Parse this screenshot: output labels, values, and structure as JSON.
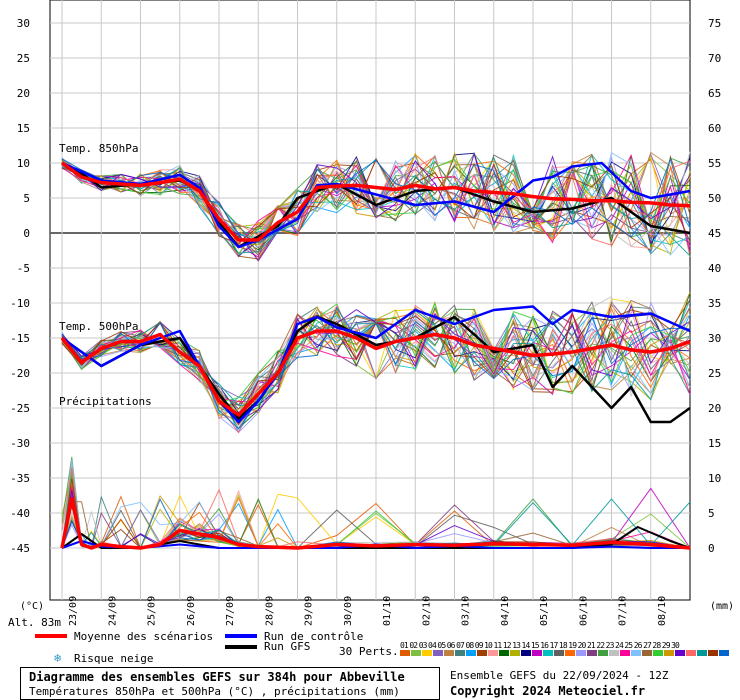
{
  "chart_data": {
    "type": "line",
    "title": "Diagramme des ensembles GEFS sur 384h pour Abbeville",
    "subtitle": "Températures 850hPa et 500hPa (°C) , précipitations (mm)",
    "ylabel_left": "(°C)",
    "ylabel_right": "(mm)",
    "ylim_left": [
      -50,
      30
    ],
    "y_ticks_left": [
      "30",
      "25",
      "20",
      "15",
      "10",
      "5",
      "0",
      "-5",
      "-10",
      "-15",
      "-20",
      "-25",
      "-30",
      "-35",
      "-40",
      "-45"
    ],
    "y_ticks_right": [
      "75",
      "70",
      "65",
      "60",
      "55",
      "50",
      "45",
      "40",
      "35",
      "30",
      "25",
      "20",
      "15",
      "10",
      "5",
      "0"
    ],
    "x_ticks": [
      "23/09",
      "24/09",
      "25/09",
      "26/09",
      "27/09",
      "28/09",
      "29/09",
      "30/09",
      "01/10",
      "02/10",
      "03/10",
      "04/10",
      "05/10",
      "06/10",
      "07/10",
      "08/10"
    ],
    "xlim_hours": [
      0,
      384
    ],
    "annotations": [
      "Temp. 850hPa",
      "Temp. 500hPa",
      "Précipitations"
    ],
    "altitude_label": "Alt. 83m",
    "grid": true,
    "mean_850": {
      "x": [
        0,
        12,
        24,
        36,
        48,
        60,
        72,
        84,
        96,
        108,
        120,
        132,
        144,
        156,
        168,
        180,
        192,
        204,
        216,
        228,
        240,
        252,
        264,
        276,
        288,
        300,
        312,
        324,
        336,
        348,
        360,
        372,
        384
      ],
      "y": [
        10,
        8,
        7.2,
        7,
        6.8,
        7.2,
        7.7,
        6,
        2,
        -1,
        -1,
        1.5,
        3,
        6.5,
        6.7,
        6.8,
        6.5,
        6.2,
        6.8,
        6.3,
        6.5,
        6,
        5.8,
        5.6,
        5.2,
        4.9,
        4.8,
        4.6,
        4.6,
        4.4,
        4.3,
        4.0,
        3.9
      ]
    },
    "control_850": {
      "x": [
        0,
        24,
        48,
        72,
        84,
        96,
        108,
        120,
        144,
        156,
        168,
        192,
        216,
        240,
        264,
        288,
        300,
        312,
        330,
        348,
        360,
        384
      ],
      "y": [
        10,
        7.5,
        7,
        8.3,
        6.5,
        1,
        -2,
        -1,
        2,
        6.8,
        7,
        5.5,
        4,
        4.5,
        3,
        7.5,
        8,
        9.5,
        10,
        6,
        5,
        6
      ]
    },
    "gfs_850": {
      "x": [
        0,
        12,
        24,
        48,
        72,
        84,
        96,
        108,
        120,
        132,
        144,
        156,
        168,
        192,
        216,
        240,
        264,
        288,
        312,
        336,
        360,
        384
      ],
      "y": [
        10,
        8.5,
        6.5,
        7,
        7.5,
        6.2,
        1.5,
        -2,
        -0.5,
        1,
        5,
        6,
        7,
        4,
        6,
        6.5,
        4.5,
        3,
        3.5,
        5,
        1,
        0
      ]
    },
    "mean_500": {
      "x": [
        0,
        12,
        24,
        36,
        48,
        60,
        72,
        84,
        96,
        108,
        120,
        132,
        144,
        156,
        168,
        180,
        192,
        204,
        216,
        228,
        240,
        252,
        264,
        276,
        288,
        300,
        312,
        324,
        336,
        348,
        360,
        372,
        384
      ],
      "y": [
        -15,
        -18.5,
        -16.5,
        -15.5,
        -15.5,
        -14.5,
        -17,
        -19,
        -24,
        -26,
        -23,
        -20,
        -15,
        -14,
        -14,
        -15,
        -16.5,
        -15.5,
        -15,
        -14.5,
        -15,
        -16,
        -16.5,
        -17,
        -17.5,
        -17.3,
        -17,
        -16.5,
        -16,
        -16.7,
        -17,
        -16.5,
        -15.5
      ]
    },
    "control_500": {
      "x": [
        0,
        24,
        48,
        72,
        84,
        96,
        108,
        120,
        132,
        144,
        156,
        168,
        192,
        216,
        240,
        264,
        288,
        300,
        312,
        336,
        360,
        384
      ],
      "y": [
        -15,
        -19,
        -16,
        -14,
        -19,
        -24,
        -27,
        -24,
        -20,
        -13,
        -12,
        -13.5,
        -15,
        -11,
        -13,
        -11,
        -10.5,
        -13,
        -11,
        -12,
        -11.5,
        -14
      ]
    },
    "gfs_500": {
      "x": [
        0,
        24,
        48,
        72,
        96,
        108,
        120,
        132,
        144,
        156,
        168,
        192,
        216,
        240,
        264,
        288,
        300,
        312,
        336,
        348,
        360,
        372,
        384
      ],
      "y": [
        -15,
        -19,
        -16,
        -15,
        -23,
        -26.5,
        -24,
        -20,
        -14,
        -12,
        -13,
        -16,
        -15,
        -12,
        -17,
        -16,
        -22,
        -19,
        -25,
        -22,
        -27,
        -27,
        -25
      ]
    },
    "mean_precip": {
      "x": [
        0,
        6,
        12,
        18,
        24,
        36,
        48,
        60,
        72,
        84,
        96,
        108,
        120,
        132,
        144,
        168,
        192,
        216,
        240,
        264,
        288,
        312,
        336,
        360,
        384
      ],
      "y": [
        0,
        7,
        0.5,
        0,
        0.5,
        0.2,
        0,
        0.5,
        2.5,
        2,
        1.5,
        0.5,
        0.2,
        0.1,
        0,
        0.5,
        0.3,
        0.5,
        0.4,
        0.6,
        0.5,
        0.4,
        0.8,
        0.5,
        0
      ]
    },
    "control_precip": {
      "x": [
        0,
        12,
        24,
        48,
        72,
        96,
        120,
        144,
        168,
        192,
        216,
        240,
        264,
        288,
        312,
        336,
        360,
        384
      ],
      "y": [
        0,
        1,
        0.2,
        0,
        0.5,
        0,
        0,
        0,
        0,
        0.5,
        0,
        0.3,
        0,
        0,
        0,
        0.2,
        0,
        0
      ]
    },
    "gfs_precip": {
      "x": [
        0,
        12,
        24,
        48,
        72,
        96,
        120,
        144,
        168,
        192,
        216,
        240,
        264,
        288,
        312,
        336,
        352,
        372,
        384
      ],
      "y": [
        0,
        2,
        0,
        0,
        1,
        0,
        0,
        0,
        0,
        0,
        0,
        0,
        0,
        0,
        0,
        0.5,
        3,
        1,
        0
      ]
    },
    "member_count": 30
  },
  "legend": {
    "mean_label": "Moyenne des scénarios",
    "control_label": "Run de contrôle",
    "gfs_label": "Run GFS",
    "snow_label": "Risque neige",
    "perts_label": "30 Perts.",
    "pert_numbers": "01 02 03 04 05 06 07 08 09 10 11 12 13 14 15 16 17 18 19 20 21 22 23 24 25 26 27 28 29 30",
    "colors": {
      "mean": "#ff0000",
      "control": "#0000ff",
      "gfs": "#000000"
    },
    "member_colors": [
      "#e05a00",
      "#7fbf3f",
      "#ffcc00",
      "#8060c0",
      "#c08040",
      "#408080",
      "#00a0ff",
      "#a04000",
      "#ff9999",
      "#006600",
      "#b0b000",
      "#000080",
      "#c000c0",
      "#00c0c0",
      "#606060",
      "#ff6600",
      "#9999ff",
      "#804080",
      "#40a040",
      "#c0c0c0",
      "#ff0099",
      "#80c0ff",
      "#996633",
      "#33cc33",
      "#cc9900",
      "#6600cc",
      "#ff6666",
      "#009999",
      "#993300",
      "#0066cc"
    ]
  },
  "footer": {
    "title": "Diagramme des ensembles GEFS sur 384h pour Abbeville",
    "subtitle": "Températures 850hPa et 500hPa (°C) , précipitations (mm)",
    "run_info": "Ensemble GEFS du 22/09/2024 - 12Z",
    "copyright": "Copyright 2024 Meteociel.fr"
  }
}
